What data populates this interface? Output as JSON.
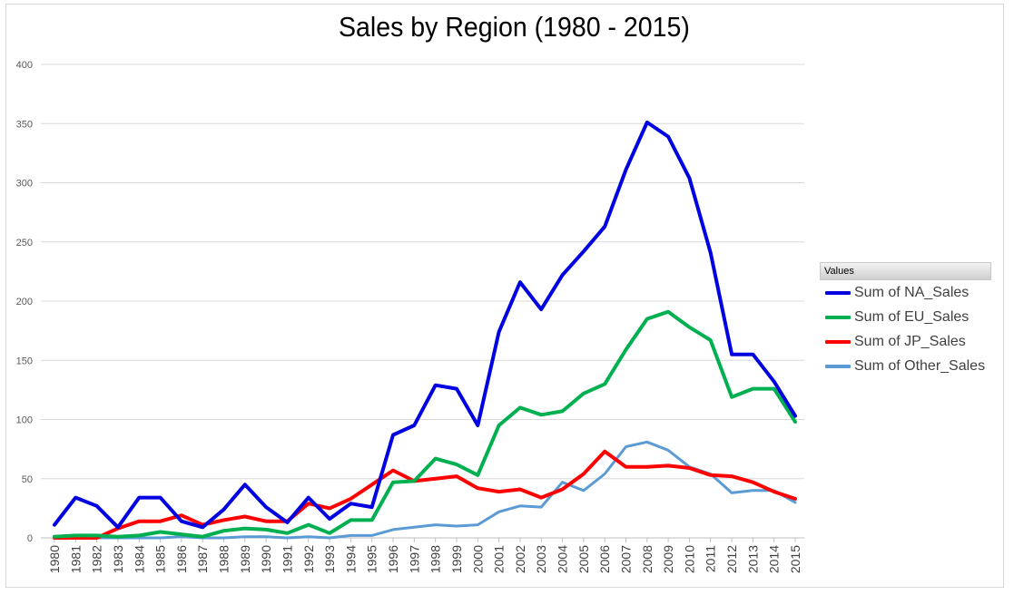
{
  "chart_data": {
    "type": "line",
    "title": "Sales by Region (1980 - 2015)",
    "xlabel": "",
    "ylabel": "",
    "ylim": [
      0,
      400
    ],
    "yticks": [
      0,
      50,
      100,
      150,
      200,
      250,
      300,
      350,
      400
    ],
    "grid": "horizontal",
    "legend_title": "Values",
    "legend_position": "right",
    "categories": [
      "1980",
      "1981",
      "1982",
      "1983",
      "1984",
      "1985",
      "1986",
      "1987",
      "1988",
      "1989",
      "1990",
      "1991",
      "1992",
      "1993",
      "1994",
      "1995",
      "1996",
      "1997",
      "1998",
      "1999",
      "2000",
      "2001",
      "2002",
      "2003",
      "2004",
      "2005",
      "2006",
      "2007",
      "2008",
      "2009",
      "2010",
      "2011",
      "2012",
      "2013",
      "2014",
      "2015"
    ],
    "series": [
      {
        "name": "Sum of NA_Sales",
        "color": "#0000e0",
        "values": [
          11,
          34,
          27,
          9,
          34,
          34,
          14,
          9,
          24,
          45,
          26,
          13,
          34,
          16,
          29,
          26,
          87,
          95,
          129,
          126,
          95,
          174,
          216,
          193,
          222,
          242,
          263,
          311,
          351,
          339,
          304,
          241,
          155,
          155,
          132,
          103
        ]
      },
      {
        "name": "Sum of EU_Sales",
        "color": "#00b050",
        "values": [
          1,
          2,
          2,
          1,
          2,
          5,
          3,
          1,
          6,
          8,
          7,
          4,
          11,
          4,
          15,
          15,
          47,
          48,
          67,
          62,
          53,
          95,
          110,
          104,
          107,
          122,
          130,
          159,
          185,
          191,
          178,
          167,
          119,
          126,
          126,
          98
        ]
      },
      {
        "name": "Sum of JP_Sales",
        "color": "#ff0000",
        "values": [
          0,
          0,
          0,
          8,
          14,
          14,
          19,
          11,
          15,
          18,
          14,
          14,
          29,
          25,
          33,
          45,
          57,
          48,
          50,
          52,
          42,
          39,
          41,
          34,
          41,
          54,
          73,
          60,
          60,
          61,
          59,
          53,
          52,
          47,
          39,
          33
        ]
      },
      {
        "name": "Sum of Other_Sales",
        "color": "#5b9bd5",
        "values": [
          0,
          0,
          0,
          0,
          0,
          0,
          1,
          0,
          0,
          1,
          1,
          0,
          1,
          0,
          2,
          2,
          7,
          9,
          11,
          10,
          11,
          22,
          27,
          26,
          47,
          40,
          54,
          77,
          81,
          74,
          60,
          54,
          38,
          40,
          40,
          30
        ]
      }
    ]
  }
}
